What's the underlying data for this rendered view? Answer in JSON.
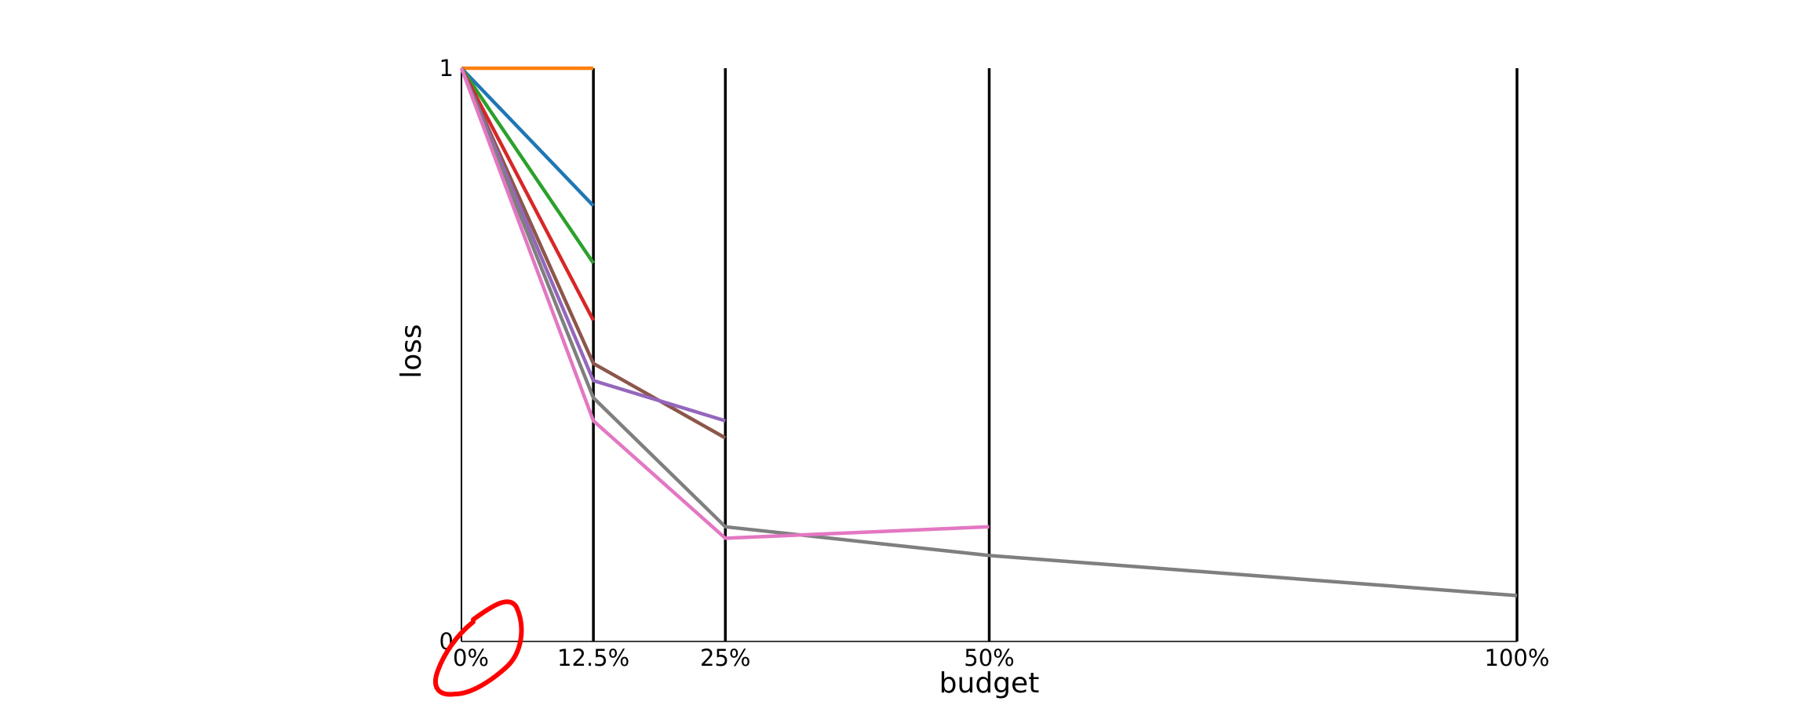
{
  "chart_data": {
    "type": "line",
    "title": "",
    "xlabel": "budget",
    "ylabel": "loss",
    "x": [
      0,
      12.5,
      25,
      50,
      100
    ],
    "x_tick_labels": [
      "0%",
      "12.5%",
      "25%",
      "50%",
      "100%"
    ],
    "y_tick_labels": [
      "0",
      "1"
    ],
    "xlim": [
      0,
      100
    ],
    "ylim": [
      0,
      1
    ],
    "grid": false,
    "legend": "none",
    "series": [
      {
        "color": "#ff7f0e",
        "x": [
          0,
          12.5
        ],
        "values": [
          1.0,
          1.0
        ]
      },
      {
        "color": "#1f77b4",
        "x": [
          0,
          12.5
        ],
        "values": [
          1.0,
          0.76
        ]
      },
      {
        "color": "#2ca02c",
        "x": [
          0,
          12.5
        ],
        "values": [
          1.0,
          0.66
        ]
      },
      {
        "color": "#d62728",
        "x": [
          0,
          12.5
        ],
        "values": [
          1.0,
          0.56
        ]
      },
      {
        "color": "#8c564b",
        "x": [
          0,
          12.5,
          25
        ],
        "values": [
          1.0,
          0.485,
          0.355
        ]
      },
      {
        "color": "#9467bd",
        "x": [
          0,
          12.5,
          25
        ],
        "values": [
          1.0,
          0.455,
          0.385
        ]
      },
      {
        "color": "#7f7f7f",
        "x": [
          0,
          12.5,
          25,
          50,
          100
        ],
        "values": [
          1.0,
          0.425,
          0.2,
          0.15,
          0.08
        ]
      },
      {
        "color": "#e377c2",
        "x": [
          0,
          12.5,
          25,
          50
        ],
        "values": [
          1.0,
          0.385,
          0.18,
          0.2
        ]
      }
    ]
  },
  "annotation": {
    "color": "#ff0000"
  }
}
